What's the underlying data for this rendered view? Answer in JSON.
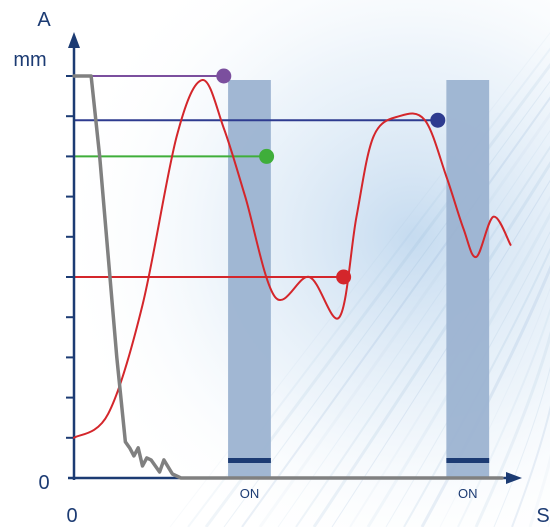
{
  "chart_data": {
    "type": "line",
    "y_axis_label": "A",
    "y_axis_unit": "mm",
    "x_axis_label": "S",
    "x_origin_label": "0",
    "y_origin_label": "0",
    "x_range": [
      0,
      100
    ],
    "y_range": [
      0,
      10
    ],
    "y_tick_values": [
      1,
      2,
      3,
      4,
      5,
      6,
      7,
      8,
      9,
      10
    ],
    "colors": {
      "axis": "#1c3b73",
      "main_curve": "#d4262b",
      "decay_curve": "#808080",
      "on_window": "#9cb3d1",
      "on_bar": "#1c3b73",
      "marker_purple": "#7b4f9e",
      "marker_navy": "#2e3b8f",
      "marker_green": "#3fae3a",
      "marker_red": "#d4262b"
    },
    "series": [
      {
        "type": "spline",
        "color": "#d4262b",
        "x": [
          0,
          8,
          16,
          24,
          30,
          35,
          40,
          47,
          55,
          62,
          66,
          70,
          76,
          82,
          87,
          91,
          94,
          98,
          102
        ],
        "y": [
          1.0,
          1.6,
          4.3,
          8.5,
          9.9,
          8.7,
          7.0,
          4.5,
          5.0,
          4.0,
          6.5,
          8.5,
          9.0,
          8.9,
          7.5,
          6.2,
          5.5,
          6.5,
          5.8
        ]
      },
      {
        "type": "polyline",
        "color": "#808080",
        "x": [
          0,
          4,
          6,
          10,
          12,
          13,
          14,
          15,
          16,
          17,
          18,
          20,
          21,
          23,
          25,
          100
        ],
        "y": [
          10.0,
          10.0,
          8.0,
          3.0,
          0.9,
          0.75,
          0.55,
          0.75,
          0.3,
          0.5,
          0.45,
          0.15,
          0.45,
          0.1,
          0.0,
          0.0
        ]
      }
    ],
    "markers": [
      {
        "x": 35,
        "y": 10.0,
        "color": "#7b4f9e"
      },
      {
        "x": 85,
        "y": 8.9,
        "color": "#2e3b8f"
      },
      {
        "x": 45,
        "y": 8.0,
        "color": "#3fae3a"
      },
      {
        "x": 63,
        "y": 5.0,
        "color": "#d4262b"
      }
    ],
    "on_windows": [
      {
        "label": "ON",
        "x_start": 36,
        "x_end": 46
      },
      {
        "label": "ON",
        "x_start": 87,
        "x_end": 97
      }
    ]
  }
}
